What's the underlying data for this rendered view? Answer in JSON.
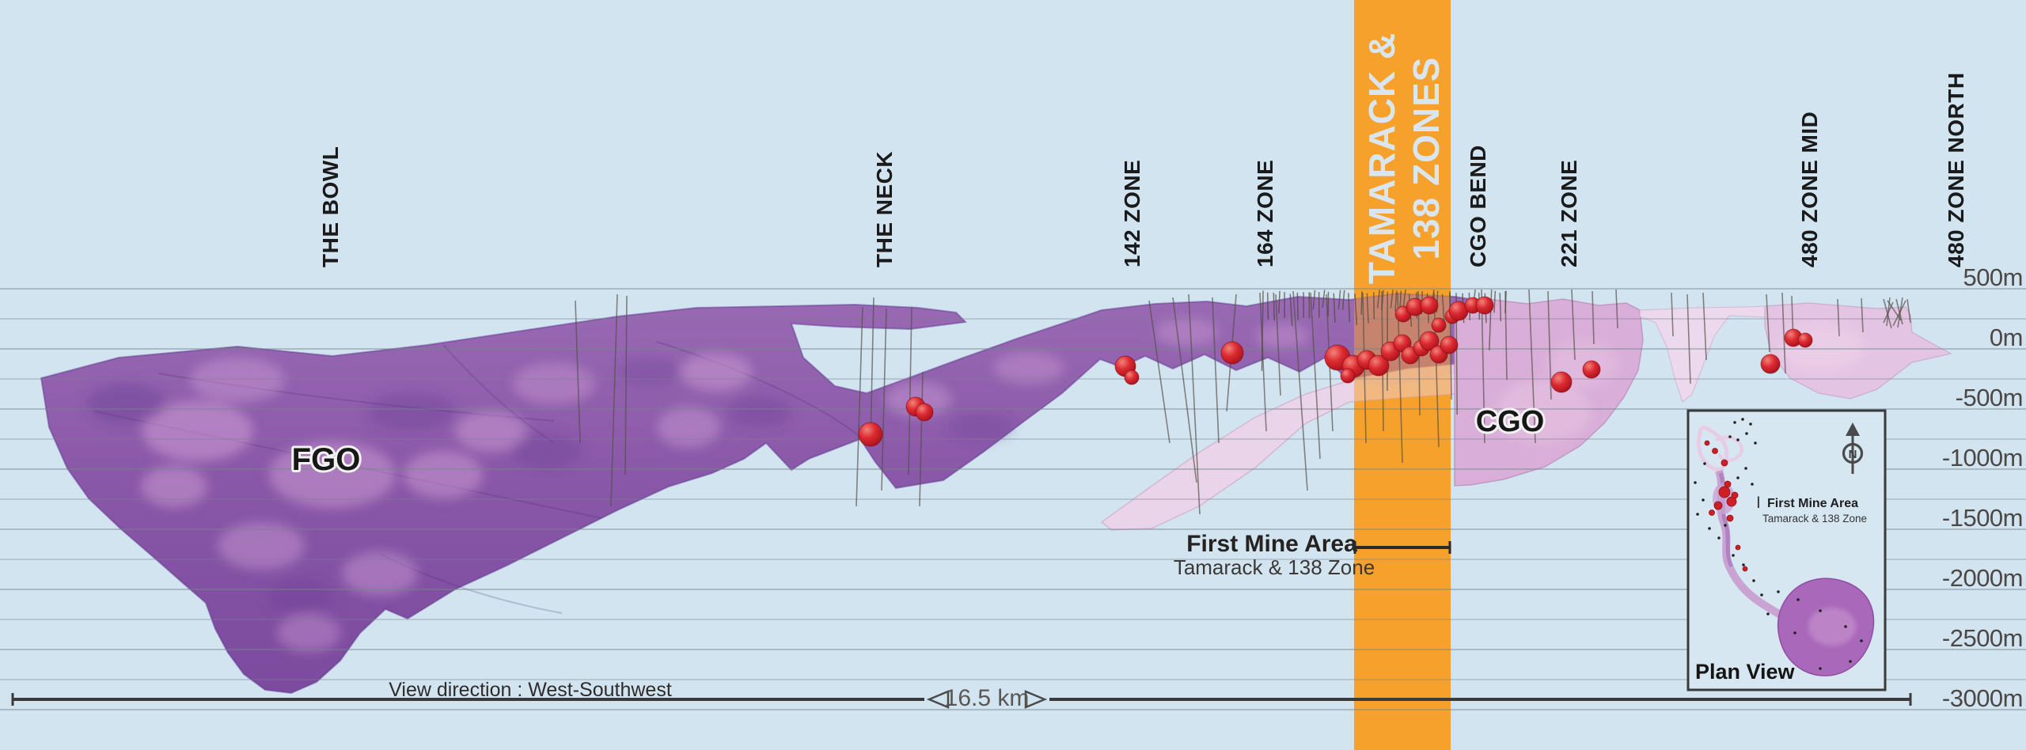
{
  "zones": [
    {
      "label": "THE BOWL"
    },
    {
      "label": "THE NECK"
    },
    {
      "label": "142 ZONE"
    },
    {
      "label": "164 ZONE"
    },
    {
      "label": "CGO BEND"
    },
    {
      "label": "221 ZONE"
    },
    {
      "label": "480 ZONE MID"
    },
    {
      "label": "480 ZONE NORTH"
    }
  ],
  "highlight_band": {
    "label_line1": "TAMARACK &",
    "label_line2": "138 ZONES"
  },
  "depth_axis": {
    "unit": "m",
    "labels": [
      "500m",
      "0m",
      "-500m",
      "-1000m",
      "-1500m",
      "-2000m",
      "-2500m",
      "-3000m"
    ]
  },
  "bodies": {
    "fgo_label": "FGO",
    "cgo_label": "CGO"
  },
  "first_mine_area": {
    "title": "First Mine Area",
    "subtitle": "Tamarack & 138 Zone"
  },
  "footer": {
    "view_direction": "View direction : West-Southwest",
    "scale_label": "16.5 km"
  },
  "plan_view": {
    "title": "Plan View",
    "marker": "I",
    "annotation_title": "First Mine Area",
    "annotation_subtitle": "Tamarack & 138 Zone",
    "north_label": "N"
  },
  "colors": {
    "background": "#D2E4F0",
    "band_orange": "#F5A12B",
    "band_text": "#D9E6F0",
    "intercept_red": "#CE1F26",
    "ore_purple": "#8A58A8"
  }
}
